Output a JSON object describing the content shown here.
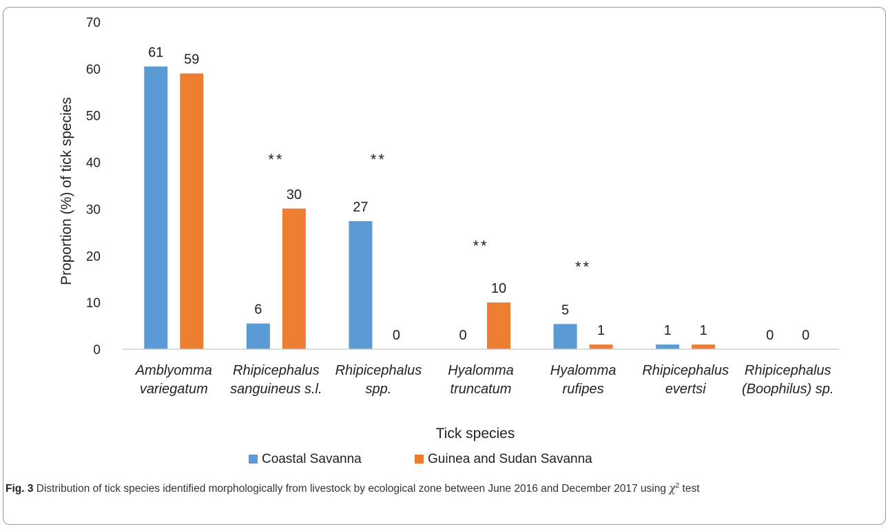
{
  "chart_data": {
    "type": "bar",
    "ylabel": "Proportion (%) of tick species",
    "xlabel": "Tick species",
    "ylim": [
      0,
      70
    ],
    "yticks": [
      0,
      10,
      20,
      30,
      40,
      50,
      60,
      70
    ],
    "grid": false,
    "legend_position": "bottom",
    "categories": [
      [
        "Amblyomma",
        "variegatum"
      ],
      [
        "Rhipicephalus",
        "sanguineus s.l."
      ],
      [
        "Rhipicephalus",
        "spp."
      ],
      [
        "Hyalomma",
        "truncatum"
      ],
      [
        "Hyalomma",
        "rufipes"
      ],
      [
        "Rhipicephalus",
        "evertsi"
      ],
      [
        "Rhipicephalus",
        "(Boophilus) sp."
      ]
    ],
    "series": [
      {
        "name": "Coastal Savanna",
        "color": "#5B9BD5",
        "values": [
          60.5,
          5.5,
          27.4,
          0,
          5.4,
          1.0,
          0
        ],
        "labels": [
          "61",
          "6",
          "27",
          "0",
          "5",
          "1",
          "0"
        ]
      },
      {
        "name": "Guinea and Sudan Savanna",
        "color": "#ED7D31",
        "values": [
          59.0,
          30.1,
          0,
          10.0,
          1.0,
          1.0,
          0
        ],
        "labels": [
          "59",
          "30",
          "0",
          "10",
          "1",
          "1",
          "0"
        ]
      }
    ],
    "annotations": [
      {
        "category": 1,
        "text": "**",
        "y": 39.5
      },
      {
        "category": 2,
        "text": "**",
        "y": 39.5
      },
      {
        "category": 3,
        "text": "**",
        "y": 21.0
      },
      {
        "category": 4,
        "text": "**",
        "y": 16.5
      }
    ]
  },
  "caption": {
    "label": "Fig. 3",
    "text": "Distribution of tick species identified morphologically from livestock by ecological zone between June 2016 and December 2017 using",
    "chi": "χ",
    "sup": "2",
    "tail": "test"
  }
}
